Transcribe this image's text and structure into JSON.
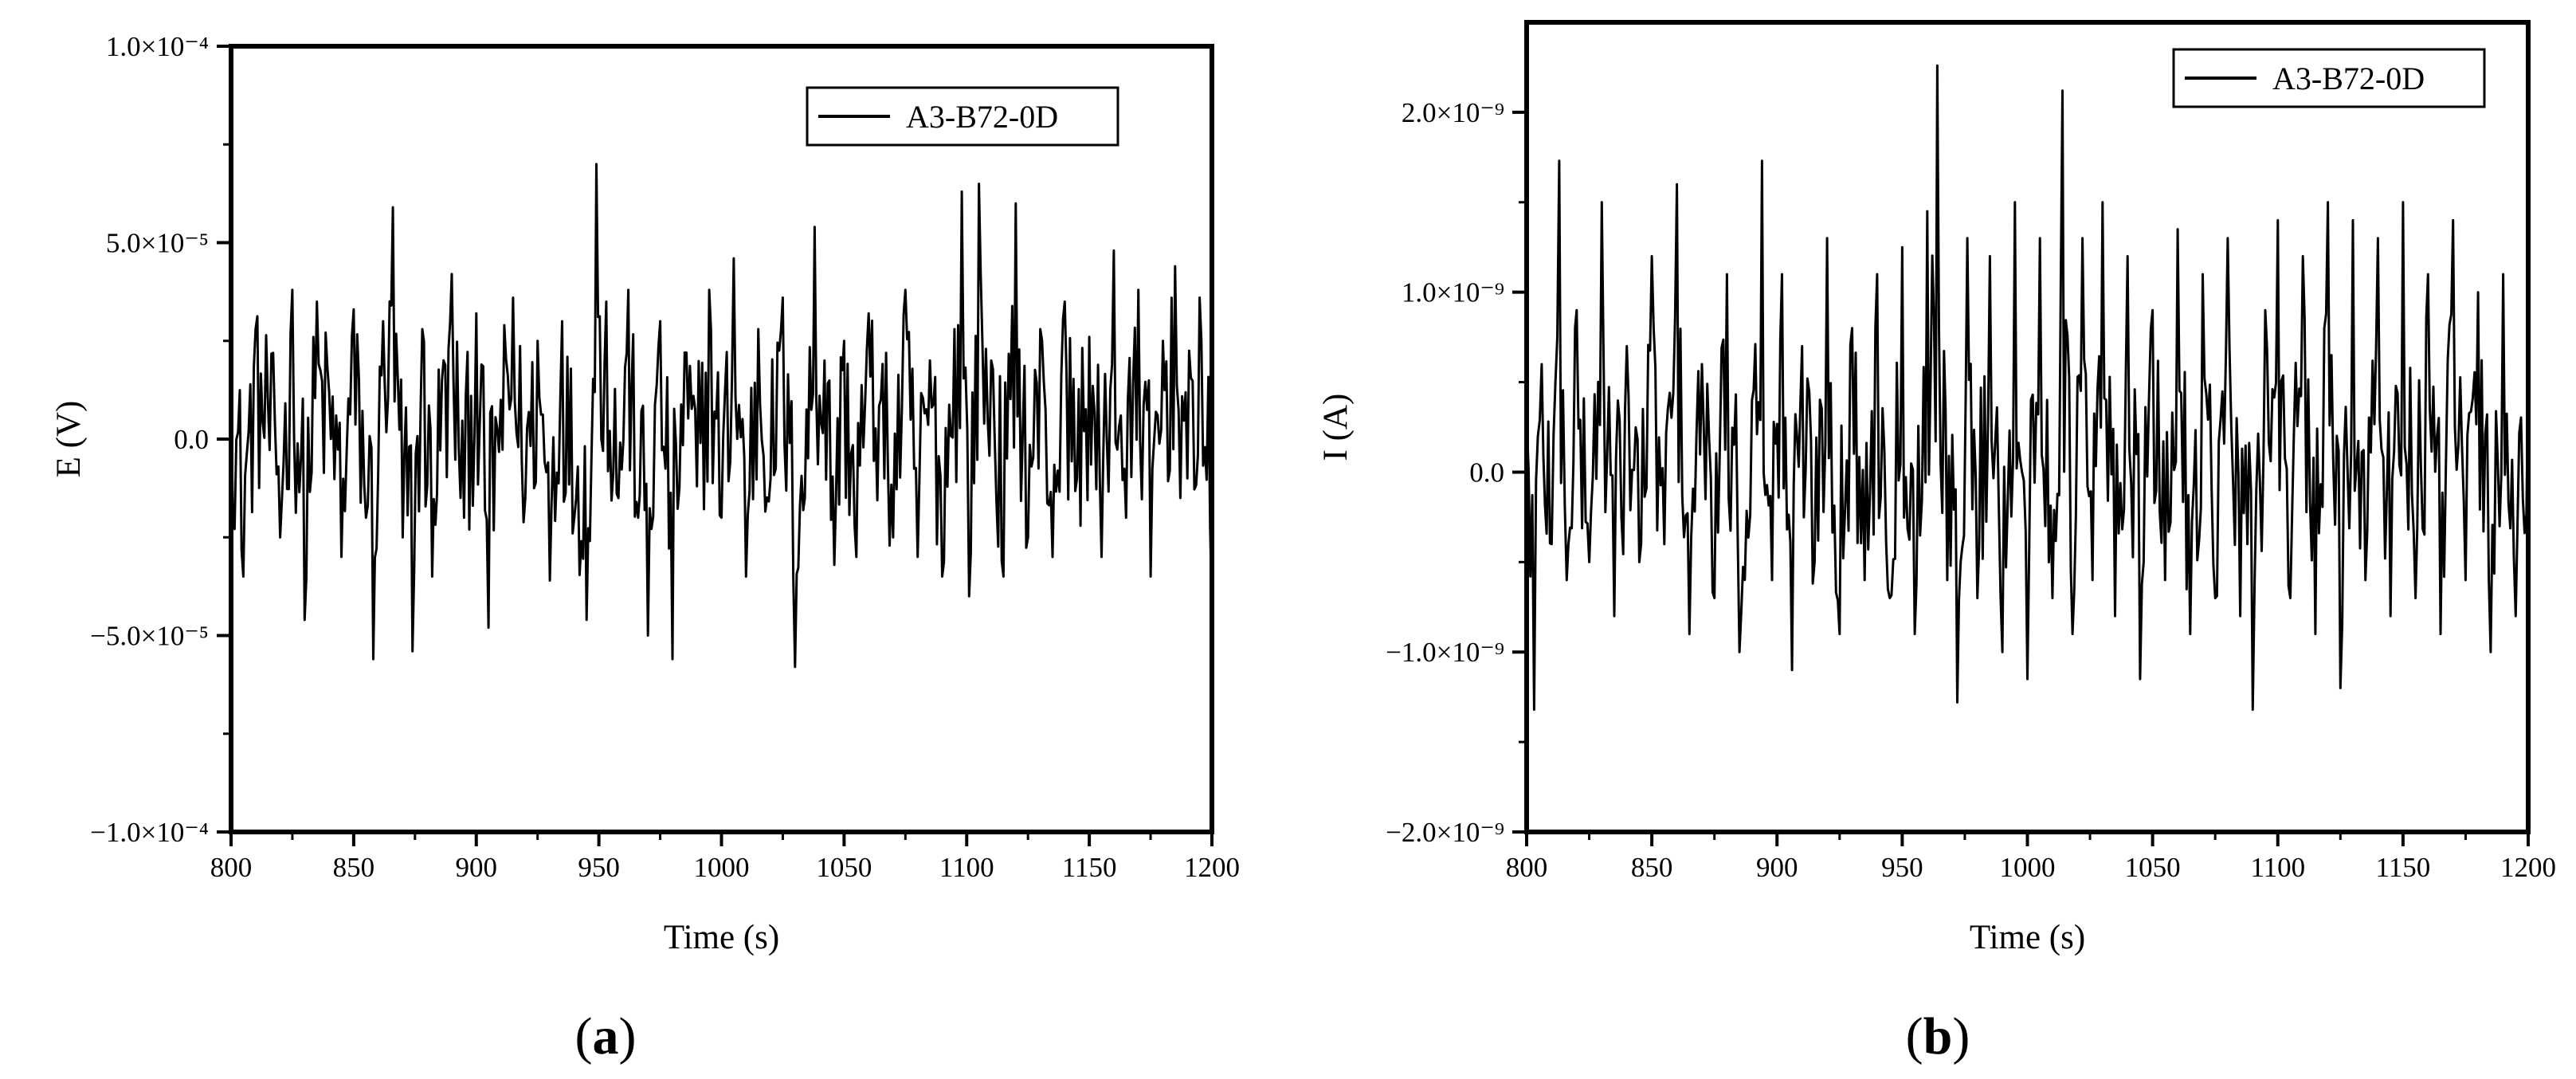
{
  "chart_data": [
    {
      "type": "line",
      "panel_label": {
        "open": "(",
        "letter": "a",
        "close": ")"
      },
      "title": "",
      "xlabel": "Time (s)",
      "ylabel": "E (V)",
      "xlim": [
        800,
        1200
      ],
      "ylim": [
        -0.0001,
        0.0001
      ],
      "xticks": [
        800,
        850,
        900,
        950,
        1000,
        1050,
        1100,
        1150,
        1200
      ],
      "xtick_labels": [
        "800",
        "850",
        "900",
        "950",
        "1000",
        "1050",
        "1100",
        "1150",
        "1200"
      ],
      "yticks": [
        -0.0001,
        -5e-05,
        0,
        5e-05,
        0.0001
      ],
      "ytick_labels": [
        "−1.0×10⁻⁴",
        "−5.0×10⁻⁵",
        "0.0",
        "5.0×10⁻⁵",
        "1.0×10⁻⁴"
      ],
      "grid": false,
      "legend_position": "top-right",
      "series": [
        {
          "name": "A3-B72-0D",
          "color": "#000000",
          "x": [
            800,
            805,
            810,
            815,
            820,
            825,
            830,
            835,
            840,
            845,
            850,
            855,
            858,
            862,
            866,
            870,
            874,
            878,
            882,
            886,
            890,
            895,
            900,
            905,
            910,
            915,
            920,
            925,
            930,
            935,
            940,
            945,
            949,
            953,
            958,
            962,
            966,
            970,
            975,
            980,
            985,
            990,
            995,
            1000,
            1005,
            1010,
            1015,
            1020,
            1025,
            1030,
            1034,
            1038,
            1042,
            1046,
            1050,
            1055,
            1060,
            1065,
            1070,
            1075,
            1080,
            1085,
            1090,
            1095,
            1098,
            1101,
            1105,
            1110,
            1115,
            1120,
            1125,
            1130,
            1135,
            1140,
            1145,
            1150,
            1155,
            1160,
            1165,
            1170,
            1175,
            1180,
            1185,
            1190,
            1195,
            1200
          ],
          "values": [
            1.52e-05,
            -3.5e-05,
            2.8e-05,
            1e-05,
            -2.5e-05,
            3.8e-05,
            -4.6e-05,
            3.5e-05,
            1.2e-05,
            -3e-05,
            3.3e-05,
            -2e-05,
            -5.6e-05,
            3e-05,
            5.9e-05,
            -2.5e-05,
            -5.4e-05,
            2.8e-05,
            -3.5e-05,
            1.5e-05,
            4.2e-05,
            -2e-05,
            3.2e-05,
            -4.8e-05,
            1e-05,
            3.6e-05,
            -1.5e-05,
            2.5e-05,
            -3.6e-05,
            3e-05,
            -2e-05,
            -4.6e-05,
            7e-05,
            3.5e-05,
            -1.5e-05,
            3.8e-05,
            -2e-05,
            -5e-05,
            3e-05,
            -5.6e-05,
            2.2e-05,
            -1.2e-05,
            3.8e-05,
            -2e-05,
            4.6e-05,
            -3.5e-05,
            2.8e-05,
            -1e-05,
            3.6e-05,
            -5.8e-05,
            -1.5e-05,
            5.4e-05,
            2e-05,
            -3.2e-05,
            2.5e-05,
            -3e-05,
            3.2e-05,
            1e-05,
            -2.5e-05,
            3.8e-05,
            -3e-05,
            2e-05,
            -3.5e-05,
            2.8e-05,
            6.3e-05,
            -4e-05,
            6.5e-05,
            2e-05,
            -3.5e-05,
            6e-05,
            -2.5e-05,
            2.8e-05,
            -3e-05,
            3.5e-05,
            -1e-05,
            2.6e-05,
            -3e-05,
            4.8e-05,
            -2e-05,
            3.8e-05,
            -3.5e-05,
            2.5e-05,
            4.4e-05,
            -1e-05,
            3.6e-05,
            -4.5e-05
          ]
        }
      ]
    },
    {
      "type": "line",
      "panel_label": {
        "open": "(",
        "letter": "b",
        "close": ")"
      },
      "title": "",
      "xlabel": "Time (s)",
      "ylabel": "I (A)",
      "xlim": [
        800,
        1200
      ],
      "ylim": [
        -2e-09,
        2.5e-09
      ],
      "xticks": [
        800,
        850,
        900,
        950,
        1000,
        1050,
        1100,
        1150,
        1200
      ],
      "xtick_labels": [
        "800",
        "850",
        "900",
        "950",
        "1000",
        "1050",
        "1100",
        "1150",
        "1200"
      ],
      "yticks": [
        -2e-09,
        -1e-09,
        0,
        1e-09,
        2e-09
      ],
      "ytick_labels": [
        "−2.0×10⁻⁹",
        "−1.0×10⁻⁹",
        "0.0",
        "1.0×10⁻⁹",
        "2.0×10⁻⁹"
      ],
      "grid": false,
      "legend_position": "top-right",
      "series": [
        {
          "name": "A3-B72-0D",
          "color": "#000000",
          "x": [
            800,
            803,
            806,
            810,
            813,
            816,
            820,
            825,
            830,
            835,
            840,
            845,
            850,
            855,
            860,
            865,
            870,
            875,
            880,
            885,
            890,
            894,
            898,
            902,
            906,
            910,
            915,
            920,
            925,
            930,
            935,
            940,
            945,
            950,
            955,
            960,
            964,
            968,
            972,
            976,
            980,
            985,
            990,
            995,
            1000,
            1005,
            1010,
            1014,
            1018,
            1022,
            1026,
            1030,
            1035,
            1040,
            1045,
            1050,
            1055,
            1060,
            1065,
            1070,
            1075,
            1080,
            1085,
            1090,
            1095,
            1100,
            1105,
            1110,
            1115,
            1120,
            1125,
            1130,
            1135,
            1140,
            1145,
            1150,
            1155,
            1160,
            1165,
            1170,
            1175,
            1180,
            1185,
            1190,
            1195,
            1200
          ],
          "values": [
            3e-10,
            -1.32e-09,
            6e-10,
            -4e-10,
            1.73e-09,
            -6e-10,
            9e-10,
            -5e-10,
            1.5e-09,
            -8e-10,
            7e-10,
            -5e-10,
            1.2e-09,
            -4e-10,
            1.6e-09,
            -9e-10,
            6e-10,
            -7e-10,
            1.1e-09,
            -1e-09,
            4e-10,
            1.73e-09,
            -6e-10,
            1.1e-09,
            -1.1e-09,
            7e-10,
            -5e-10,
            1.3e-09,
            -9e-10,
            8e-10,
            -6e-10,
            1.1e-09,
            -7e-10,
            1.25e-09,
            -9e-10,
            1.45e-09,
            2.26e-09,
            -6e-10,
            -1.28e-09,
            1.3e-09,
            -7e-10,
            1.2e-09,
            -1e-09,
            1.5e-09,
            -1.15e-09,
            1.3e-09,
            -7e-10,
            2.12e-09,
            -9e-10,
            1.3e-09,
            -6e-10,
            1.5e-09,
            -8e-10,
            1.2e-09,
            -1.15e-09,
            9e-10,
            -6e-10,
            1.35e-09,
            -9e-10,
            1.1e-09,
            -7e-10,
            1.3e-09,
            -8e-10,
            -1.32e-09,
            9e-10,
            1.4e-09,
            -7e-10,
            1.2e-09,
            -9e-10,
            1.5e-09,
            -1.2e-09,
            1.4e-09,
            -6e-10,
            1.3e-09,
            -8e-10,
            1.5e-09,
            -7e-10,
            1.1e-09,
            -9e-10,
            1.4e-09,
            -6e-10,
            1e-09,
            -1e-09,
            1.1e-09,
            -8e-10,
            6e-10
          ]
        }
      ]
    }
  ]
}
